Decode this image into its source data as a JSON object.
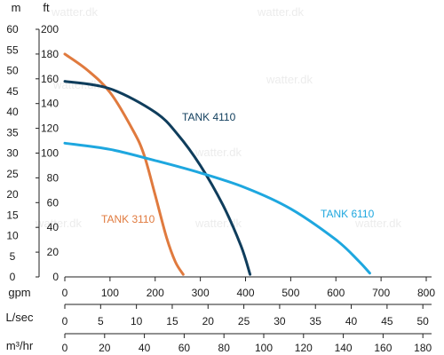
{
  "watermark": "watter.dk",
  "chart_data": {
    "type": "line",
    "title": "",
    "units": {
      "head_m": "m",
      "head_ft": "ft",
      "flow_gpm": "gpm",
      "flow_lsec": "L/sec",
      "flow_m3hr": "m³/hr"
    },
    "axes": {
      "ft": {
        "ticks": [
          0,
          20,
          40,
          60,
          80,
          100,
          120,
          140,
          160,
          180,
          200
        ],
        "range": [
          0,
          200
        ]
      },
      "m": {
        "ticks": [
          0,
          5,
          10,
          15,
          20,
          25,
          30,
          35,
          40,
          45,
          50,
          55,
          60
        ],
        "range_ft": [
          0,
          200
        ]
      },
      "gpm": {
        "ticks": [
          0,
          100,
          200,
          300,
          400,
          500,
          600,
          700,
          800
        ],
        "range": [
          0,
          800
        ]
      },
      "lsec": {
        "ticks": [
          0,
          5,
          10,
          15,
          20,
          25,
          30,
          35,
          40,
          45,
          50
        ]
      },
      "m3hr": {
        "ticks": [
          0,
          20,
          40,
          60,
          80,
          100,
          120,
          140,
          160,
          180
        ]
      }
    },
    "grid": false,
    "x_unit": "gpm",
    "y_unit": "ft",
    "series": [
      {
        "name": "TANK 3110",
        "color": "#e07a3e",
        "points": [
          [
            0,
            180
          ],
          [
            50,
            167
          ],
          [
            100,
            149
          ],
          [
            150,
            119
          ],
          [
            175,
            99
          ],
          [
            200,
            66
          ],
          [
            225,
            32
          ],
          [
            245,
            12
          ],
          [
            262,
            2
          ]
        ]
      },
      {
        "name": "TANK 4110",
        "color": "#0f3d5c",
        "points": [
          [
            0,
            158
          ],
          [
            100,
            152
          ],
          [
            200,
            133
          ],
          [
            250,
            115
          ],
          [
            300,
            90
          ],
          [
            350,
            58
          ],
          [
            390,
            25
          ],
          [
            410,
            2
          ]
        ]
      },
      {
        "name": "TANK 6110",
        "color": "#1ea7df",
        "points": [
          [
            0,
            108
          ],
          [
            100,
            103
          ],
          [
            200,
            94
          ],
          [
            300,
            84
          ],
          [
            400,
            72
          ],
          [
            500,
            55
          ],
          [
            600,
            30
          ],
          [
            650,
            13
          ],
          [
            675,
            3
          ]
        ]
      }
    ]
  }
}
